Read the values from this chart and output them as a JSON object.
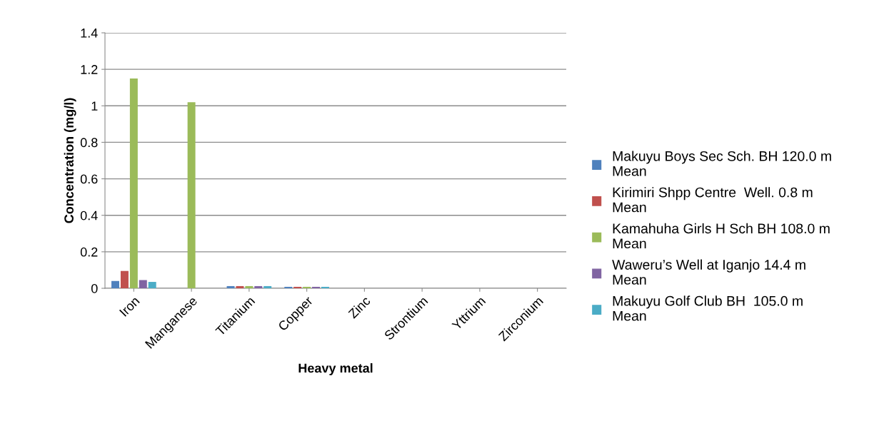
{
  "chart_data": {
    "type": "bar",
    "xlabel": "Heavy metal",
    "ylabel": "Concentration (mg/l)",
    "categories": [
      "Iron",
      "Manganese",
      "Titanium",
      "Copper",
      "Zinc",
      "Strontium",
      "Yttrium",
      "Zirconium"
    ],
    "series": [
      {
        "name": "Makuyu Boys Sec Sch. BH 120.0 m Mean",
        "color": "#4f81bd",
        "values": [
          0.04,
          0,
          0.012,
          0.008,
          0,
          0,
          0,
          0
        ]
      },
      {
        "name": "Kirimiri Shpp Centre  Well. 0.8 m Mean",
        "color": "#c0504d",
        "values": [
          0.095,
          0,
          0.012,
          0.008,
          0,
          0,
          0,
          0
        ]
      },
      {
        "name": "Kamahuha Girls H Sch BH 108.0 m Mean",
        "color": "#9bbb59",
        "values": [
          1.15,
          1.02,
          0.012,
          0.008,
          0,
          0,
          0,
          0
        ]
      },
      {
        "name": "Waweru’s Well at Iganjo 14.4 m Mean",
        "color": "#8064a2",
        "values": [
          0.045,
          0,
          0.012,
          0.008,
          0,
          0,
          0,
          0
        ]
      },
      {
        "name": "Makuyu Golf Club BH  105.0 m Mean",
        "color": "#4bacc6",
        "values": [
          0.035,
          0,
          0.012,
          0.008,
          0,
          0,
          0,
          0
        ]
      }
    ],
    "ylim": [
      0,
      1.4
    ],
    "yticks": [
      0,
      0.2,
      0.4,
      0.6,
      0.8,
      1,
      1.2,
      1.4
    ],
    "grid": "y",
    "legend": "right"
  }
}
